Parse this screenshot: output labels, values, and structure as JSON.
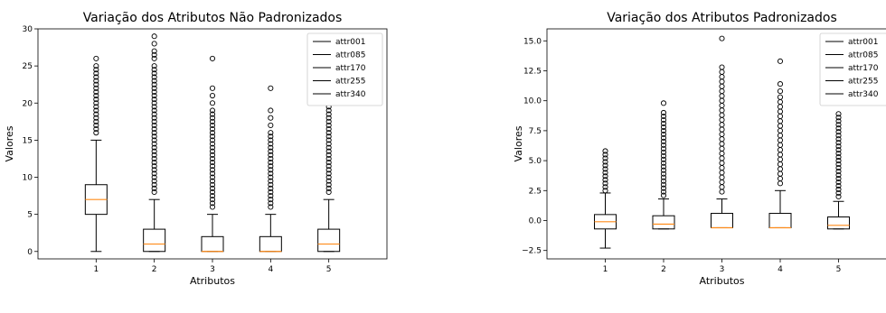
{
  "chart_data": [
    {
      "type": "box",
      "title": "Variação dos Atributos Não Padronizados",
      "xlabel": "Atributos",
      "ylabel": "Valores",
      "categories": [
        "1",
        "2",
        "3",
        "4",
        "5"
      ],
      "ylim": [
        -1,
        30
      ],
      "yticks": [
        "0",
        "5",
        "10",
        "15",
        "20",
        "25",
        "30"
      ],
      "ytick_values": [
        0,
        5,
        10,
        15,
        20,
        25,
        30
      ],
      "legend": {
        "position": "top-right",
        "entries": [
          "attr001",
          "attr085",
          "attr170",
          "attr255",
          "attr340"
        ]
      },
      "boxes": [
        {
          "whisker_low": 0,
          "q1": 5,
          "median": 7,
          "q3": 9,
          "whisker_high": 15,
          "outliers": [
            16,
            16.5,
            17,
            17.5,
            18,
            18.5,
            19,
            19.5,
            20,
            20.5,
            21,
            21.5,
            22,
            22.5,
            23,
            23.5,
            24,
            24.5,
            25,
            26
          ]
        },
        {
          "whisker_low": 0,
          "q1": 0,
          "median": 1,
          "q3": 3,
          "whisker_high": 7,
          "outliers": [
            8,
            8.5,
            9,
            9.5,
            10,
            10.5,
            11,
            11.5,
            12,
            12.5,
            13,
            13.5,
            14,
            14.5,
            15,
            15.5,
            16,
            16.5,
            17,
            17.5,
            18,
            18.5,
            19,
            19.5,
            20,
            20.5,
            21,
            21.5,
            22,
            22.5,
            23,
            23.5,
            24,
            24.5,
            25,
            26,
            26.5,
            27,
            28,
            29
          ]
        },
        {
          "whisker_low": 0,
          "q1": 0,
          "median": 0,
          "q3": 2,
          "whisker_high": 5,
          "outliers": [
            6,
            6.5,
            7,
            7.5,
            8,
            8.5,
            9,
            9.5,
            10,
            10.5,
            11,
            11.5,
            12,
            12.5,
            13,
            13.5,
            14,
            14.5,
            15,
            15.5,
            16,
            16.5,
            17,
            17.5,
            18,
            18.5,
            19,
            20,
            21,
            22,
            26
          ]
        },
        {
          "whisker_low": 0,
          "q1": 0,
          "median": 0,
          "q3": 2,
          "whisker_high": 5,
          "outliers": [
            6,
            6.5,
            7,
            7.5,
            8,
            8.5,
            9,
            9.5,
            10,
            10.5,
            11,
            11.5,
            12,
            12.5,
            13,
            13.5,
            14,
            14.5,
            15,
            15.5,
            16,
            17,
            18,
            19,
            22
          ]
        },
        {
          "whisker_low": 0,
          "q1": 0,
          "median": 1,
          "q3": 3,
          "whisker_high": 7,
          "outliers": [
            8,
            8.5,
            9,
            9.5,
            10,
            10.5,
            11,
            11.5,
            12,
            12.5,
            13,
            13.5,
            14,
            14.5,
            15,
            15.5,
            16,
            16.5,
            17,
            17.5,
            18,
            18.5,
            19,
            19.5,
            20,
            20.5,
            21,
            21.5,
            22,
            22.5,
            23,
            23.5,
            24,
            24.5,
            25,
            26,
            27,
            28
          ]
        }
      ]
    },
    {
      "type": "box",
      "title": "Variação dos Atributos Padronizados",
      "xlabel": "Atributos",
      "ylabel": "Valores",
      "categories": [
        "1",
        "2",
        "3",
        "4",
        "5"
      ],
      "ylim": [
        -3.2,
        16
      ],
      "yticks": [
        "−2.5",
        "0.0",
        "2.5",
        "5.0",
        "7.5",
        "10.0",
        "12.5",
        "15.0"
      ],
      "ytick_values": [
        -2.5,
        0,
        2.5,
        5,
        7.5,
        10,
        12.5,
        15
      ],
      "legend": {
        "position": "top-right",
        "entries": [
          "attr001",
          "attr085",
          "attr170",
          "attr255",
          "attr340"
        ]
      },
      "boxes": [
        {
          "whisker_low": -2.3,
          "q1": -0.7,
          "median": -0.1,
          "q3": 0.5,
          "whisker_high": 2.3,
          "outliers": [
            2.5,
            2.8,
            3.1,
            3.4,
            3.7,
            4.0,
            4.3,
            4.6,
            4.9,
            5.2,
            5.5,
            5.8
          ]
        },
        {
          "whisker_low": -0.7,
          "q1": -0.7,
          "median": -0.3,
          "q3": 0.4,
          "whisker_high": 1.8,
          "outliers": [
            2.1,
            2.4,
            2.7,
            3.0,
            3.3,
            3.6,
            3.9,
            4.2,
            4.5,
            4.8,
            5.1,
            5.4,
            5.7,
            6.0,
            6.3,
            6.6,
            6.9,
            7.2,
            7.5,
            7.8,
            8.1,
            8.4,
            8.7,
            9.0,
            9.8
          ]
        },
        {
          "whisker_low": -0.6,
          "q1": -0.6,
          "median": -0.6,
          "q3": 0.6,
          "whisker_high": 1.8,
          "outliers": [
            2.4,
            2.8,
            3.2,
            3.6,
            4.0,
            4.4,
            4.8,
            5.2,
            5.6,
            6.0,
            6.4,
            6.8,
            7.2,
            7.6,
            8.0,
            8.4,
            8.8,
            9.2,
            9.6,
            10.0,
            10.4,
            10.8,
            11.2,
            11.6,
            12.0,
            12.4,
            12.8,
            15.2
          ]
        },
        {
          "whisker_low": -0.6,
          "q1": -0.6,
          "median": -0.6,
          "q3": 0.6,
          "whisker_high": 2.5,
          "outliers": [
            3.1,
            3.5,
            3.9,
            4.3,
            4.7,
            5.1,
            5.5,
            5.9,
            6.3,
            6.7,
            7.1,
            7.5,
            7.9,
            8.3,
            8.7,
            9.1,
            9.5,
            9.9,
            10.3,
            10.8,
            11.4,
            13.3
          ]
        },
        {
          "whisker_low": -0.7,
          "q1": -0.7,
          "median": -0.4,
          "q3": 0.3,
          "whisker_high": 1.6,
          "outliers": [
            2.0,
            2.3,
            2.6,
            2.9,
            3.2,
            3.5,
            3.8,
            4.1,
            4.4,
            4.7,
            5.0,
            5.3,
            5.6,
            5.9,
            6.2,
            6.5,
            6.8,
            7.1,
            7.4,
            7.7,
            8.0,
            8.3,
            8.6,
            8.9
          ]
        }
      ]
    }
  ]
}
